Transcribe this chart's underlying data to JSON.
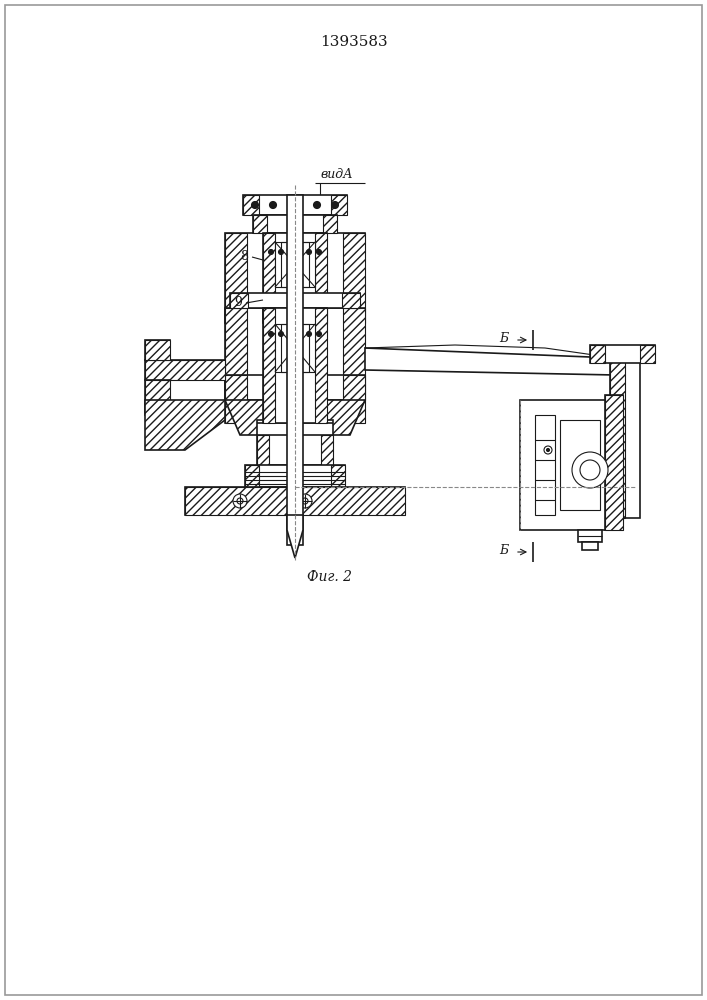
{
  "title": "1393583",
  "bg_color": "#ffffff",
  "line_color": "#1a1a1a",
  "fig_label": "Фиг. 2",
  "vida_label": "видА",
  "label_8": "8",
  "label_9": "9",
  "label_b": "Б"
}
